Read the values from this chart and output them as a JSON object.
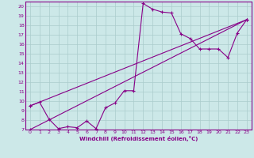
{
  "xlabel": "Windchill (Refroidissement éolien,°C)",
  "bg_color": "#cce8e8",
  "grid_color": "#aacccc",
  "line_color": "#880088",
  "xlim": [
    -0.5,
    23.5
  ],
  "ylim": [
    7,
    20.5
  ],
  "xticks": [
    0,
    1,
    2,
    3,
    4,
    5,
    6,
    7,
    8,
    9,
    10,
    11,
    12,
    13,
    14,
    15,
    16,
    17,
    18,
    19,
    20,
    21,
    22,
    23
  ],
  "yticks": [
    7,
    8,
    9,
    10,
    11,
    12,
    13,
    14,
    15,
    16,
    17,
    18,
    19,
    20
  ],
  "line1_x": [
    0,
    1,
    2,
    3,
    4,
    5,
    6,
    7,
    8,
    9,
    10,
    11,
    12,
    13,
    14,
    15,
    16,
    17,
    18,
    19,
    20,
    21,
    22,
    23
  ],
  "line1_y": [
    9.5,
    9.9,
    8.1,
    7.1,
    7.3,
    7.2,
    7.9,
    7.1,
    9.3,
    9.8,
    11.1,
    11.1,
    20.3,
    19.7,
    19.4,
    19.3,
    17.1,
    16.6,
    15.5,
    15.5,
    15.5,
    14.6,
    17.2,
    18.6
  ],
  "line2_x": [
    0,
    23
  ],
  "line2_y": [
    9.5,
    18.6
  ],
  "line3_x": [
    0,
    23
  ],
  "line3_y": [
    7.0,
    18.6
  ],
  "marker": "+"
}
